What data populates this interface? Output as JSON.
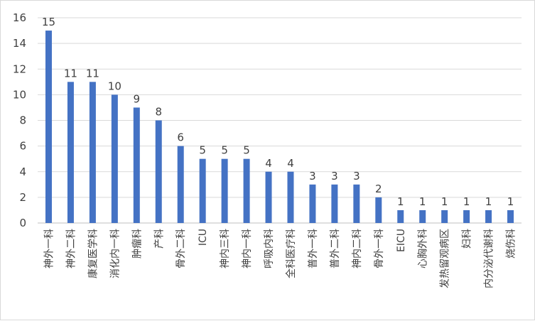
{
  "chart_data": {
    "type": "bar",
    "title": "",
    "xlabel": "",
    "ylabel": "",
    "ylim": [
      0,
      16
    ],
    "y_ticks": [
      0,
      2,
      4,
      6,
      8,
      10,
      12,
      14,
      16
    ],
    "grid": true,
    "legend": "none",
    "bar_color": "#4472c4",
    "categories": [
      "神外一科",
      "神外二科",
      "康复医学科",
      "消化内一科",
      "肿瘤科",
      "产科",
      "骨外二科",
      "ICU",
      "神内三科",
      "神内一科",
      "呼吸内科",
      "全科医疗科",
      "普外一科",
      "普外二科",
      "神内二科",
      "骨外一科",
      "EICU",
      "心胸外科",
      "发热留观病区",
      "妇科",
      "内分泌代谢科",
      "烧伤科"
    ],
    "values": [
      15,
      11,
      11,
      10,
      9,
      8,
      6,
      5,
      5,
      5,
      4,
      4,
      3,
      3,
      3,
      2,
      1,
      1,
      1,
      1,
      1,
      1
    ]
  }
}
